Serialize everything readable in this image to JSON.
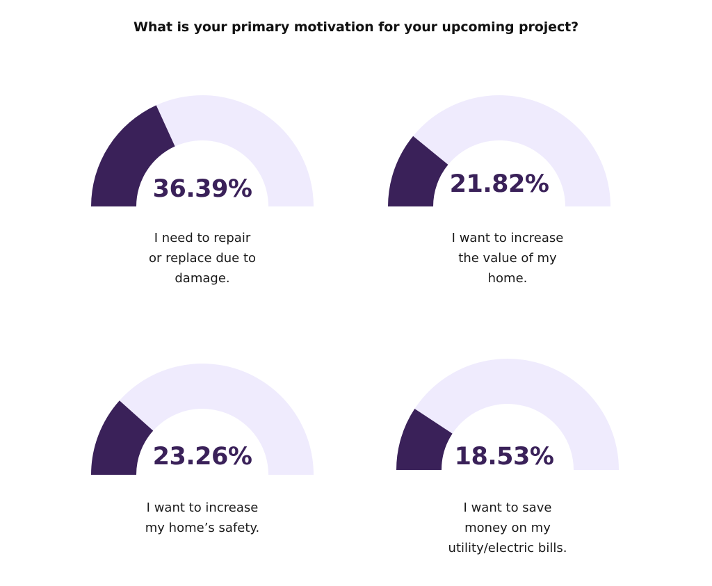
{
  "title": "What is your primary motivation for your upcoming project?",
  "colors": {
    "filled": "#3a2159",
    "track": "#efebfd",
    "text": "#1a1a1a"
  },
  "gauges": [
    {
      "value": 36.39,
      "value_label": "36.39%",
      "label_lines": [
        "I need to repair",
        "or replace due to",
        "damage."
      ]
    },
    {
      "value": 21.82,
      "value_label": "21.82%",
      "label_lines": [
        "I want to increase",
        "the value of my",
        "home."
      ]
    },
    {
      "value": 23.26,
      "value_label": "23.26%",
      "label_lines": [
        "I want to increase",
        "my home’s safety."
      ]
    },
    {
      "value": 18.53,
      "value_label": "18.53%",
      "label_lines": [
        "I want to save",
        "money on my",
        "utility/electric bills."
      ]
    }
  ],
  "chart_data": {
    "type": "gauge",
    "title": "What is your primary motivation for your upcoming project?",
    "categories": [
      "I need to repair or replace due to damage.",
      "I want to increase the value of my home.",
      "I want to increase my home’s safety.",
      "I want to save money on my utility/electric bills."
    ],
    "values": [
      36.39,
      21.82,
      23.26,
      18.53
    ],
    "unit": "%",
    "range": [
      0,
      100
    ]
  }
}
